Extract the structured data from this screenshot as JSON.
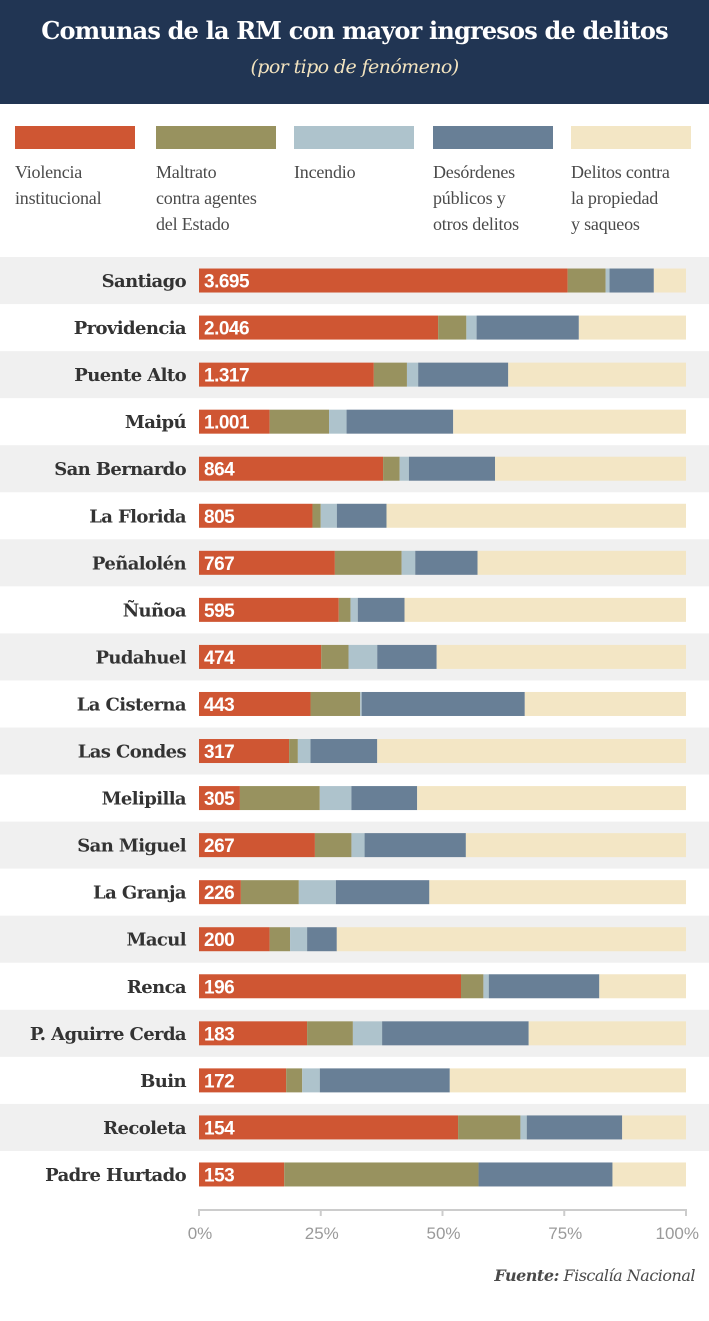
{
  "header": {
    "title": "Comunas de la RM con mayor ingresos de delitos",
    "subtitle": "(por tipo de fenómeno)"
  },
  "colors": {
    "header_bg": "#213553",
    "stripe": "#f0f0f0",
    "violencia": "#cf5633",
    "maltrato": "#98925f",
    "incendio": "#aec3cc",
    "desordenes": "#687f96",
    "propiedad": "#f3e6c5"
  },
  "legend": [
    {
      "key": "violencia",
      "label": "Violencia\ninstitucional"
    },
    {
      "key": "maltrato",
      "label": "Maltrato\ncontra agentes\ndel Estado"
    },
    {
      "key": "incendio",
      "label": "Incendio"
    },
    {
      "key": "desordenes",
      "label": "Desórdenes\npúblicos y\notros delitos"
    },
    {
      "key": "propiedad",
      "label": "Delitos contra\nla propiedad\ny saqueos"
    }
  ],
  "source": {
    "prefix": "Fuente:",
    "name": "Fiscalía Nacional"
  },
  "chart_data": {
    "type": "bar",
    "orientation": "horizontal",
    "stacked": true,
    "normalized": true,
    "title": "Comunas de la RM con mayor ingresos de delitos",
    "subtitle": "(por tipo de fenómeno)",
    "xlabel": "",
    "ylabel": "",
    "xlim": [
      0,
      100
    ],
    "x_ticks": [
      "0%",
      "25%",
      "50%",
      "75%",
      "100%"
    ],
    "x_tick_values": [
      0,
      25,
      50,
      75,
      100
    ],
    "legend_position": "top",
    "categories": [
      "Santiago",
      "Providencia",
      "Puente Alto",
      "Maipú",
      "San Bernardo",
      "La Florida",
      "Peñalolén",
      "Ñuñoa",
      "Pudahuel",
      "La Cisterna",
      "Las Condes",
      "Melipilla",
      "San Miguel",
      "La Granja",
      "Macul",
      "Renca",
      "P. Aguirre Cerda",
      "Buin",
      "Recoleta",
      "Padre Hurtado"
    ],
    "value_labels": [
      "3.695",
      "2.046",
      "1.317",
      "1.001",
      "864",
      "805",
      "767",
      "595",
      "474",
      "443",
      "317",
      "305",
      "267",
      "226",
      "200",
      "196",
      "183",
      "172",
      "154",
      "153"
    ],
    "series": [
      {
        "name": "Violencia institucional",
        "key": "violencia",
        "values": [
          75.7,
          49.1,
          35.9,
          14.5,
          37.8,
          23.3,
          27.9,
          28.7,
          25.1,
          22.9,
          18.5,
          8.4,
          23.8,
          8.6,
          14.5,
          53.8,
          22.2,
          17.9,
          53.2,
          17.5
        ]
      },
      {
        "name": "Maltrato contra agentes del Estado",
        "key": "maltrato",
        "values": [
          7.8,
          5.8,
          6.8,
          12.2,
          3.4,
          1.7,
          13.7,
          2.4,
          5.6,
          10.2,
          1.8,
          16.4,
          7.5,
          11.9,
          4.2,
          4.6,
          9.4,
          3.3,
          12.8,
          39.9
        ]
      },
      {
        "name": "Incendio",
        "key": "incendio",
        "values": [
          0.8,
          2.1,
          2.3,
          3.6,
          1.9,
          3.3,
          2.8,
          1.5,
          5.9,
          0.3,
          2.6,
          6.5,
          2.7,
          7.6,
          3.5,
          1.1,
          6.0,
          3.6,
          1.3,
          0.0
        ]
      },
      {
        "name": "Desórdenes públicos y otros delitos",
        "key": "desordenes",
        "values": [
          9.1,
          21.0,
          18.5,
          21.9,
          17.7,
          10.2,
          12.8,
          9.6,
          12.2,
          33.5,
          13.7,
          13.5,
          20.8,
          19.2,
          6.1,
          22.7,
          30.1,
          26.7,
          19.6,
          27.5
        ]
      },
      {
        "name": "Delitos contra la propiedad y saqueos",
        "key": "propiedad",
        "values": [
          6.6,
          22.0,
          36.5,
          47.8,
          39.2,
          61.5,
          42.8,
          57.8,
          51.2,
          33.1,
          63.4,
          55.2,
          45.2,
          52.7,
          71.7,
          17.8,
          32.3,
          48.5,
          13.1,
          15.1
        ]
      }
    ]
  }
}
